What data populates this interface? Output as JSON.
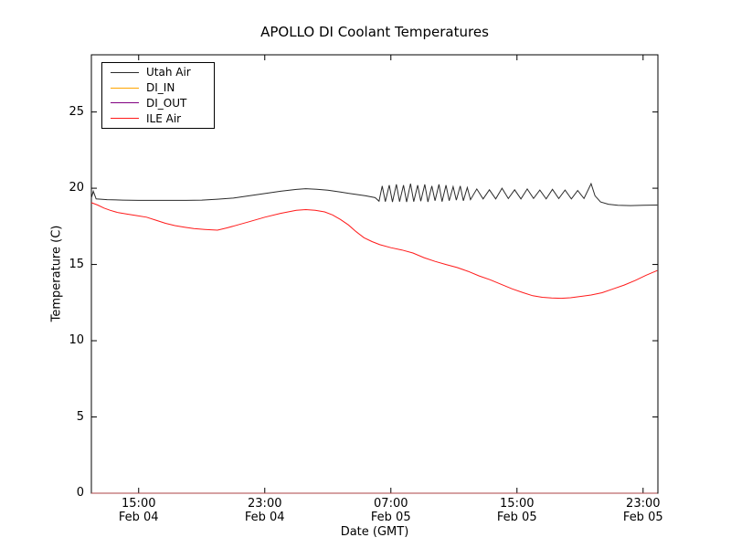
{
  "chart": {
    "title": "APOLLO DI Coolant Temperatures",
    "xlabel": "Date (GMT)",
    "ylabel": "Temperature (C)"
  },
  "chart_data": {
    "type": "line",
    "title": "APOLLO DI Coolant Temperatures",
    "xlabel": "Date (GMT)",
    "ylabel": "Temperature (C)",
    "grid": false,
    "legend_position": "upper left",
    "x_unit": "hours since Feb 04 12:00 GMT",
    "x_range_hours": [
      0,
      35.94
    ],
    "ylim": [
      0,
      28.75
    ],
    "x_ticks": [
      {
        "h": 3,
        "time": "15:00",
        "date": "Feb 04"
      },
      {
        "h": 11,
        "time": "23:00",
        "date": "Feb 04"
      },
      {
        "h": 19,
        "time": "07:00",
        "date": "Feb 05"
      },
      {
        "h": 27,
        "time": "15:00",
        "date": "Feb 05"
      },
      {
        "h": 35,
        "time": "23:00",
        "date": "Feb 05"
      }
    ],
    "y_ticks": [
      {
        "value": 0,
        "label": "0"
      },
      {
        "value": 5,
        "label": "5"
      },
      {
        "value": 10,
        "label": "10"
      },
      {
        "value": 15,
        "label": "15"
      },
      {
        "value": 20,
        "label": "20"
      },
      {
        "value": 25,
        "label": "25"
      }
    ],
    "series": [
      {
        "name": "Utah Air",
        "color": "#2b2b2b",
        "opacity": 1,
        "points": [
          [
            0,
            19.35
          ],
          [
            0.12,
            19.8
          ],
          [
            0.3,
            19.3
          ],
          [
            1,
            19.25
          ],
          [
            2,
            19.22
          ],
          [
            3,
            19.2
          ],
          [
            4,
            19.2
          ],
          [
            5,
            19.2
          ],
          [
            6,
            19.2
          ],
          [
            7,
            19.22
          ],
          [
            8,
            19.28
          ],
          [
            9,
            19.35
          ],
          [
            10,
            19.5
          ],
          [
            11,
            19.65
          ],
          [
            12,
            19.8
          ],
          [
            13,
            19.92
          ],
          [
            13.6,
            19.97
          ],
          [
            14.3,
            19.93
          ],
          [
            15,
            19.87
          ],
          [
            15.8,
            19.75
          ],
          [
            16.6,
            19.62
          ],
          [
            17.4,
            19.5
          ],
          [
            18,
            19.38
          ],
          [
            18.25,
            19.15
          ],
          [
            18.45,
            20.15
          ],
          [
            18.65,
            19.12
          ],
          [
            18.9,
            20.2
          ],
          [
            19.1,
            19.1
          ],
          [
            19.35,
            20.25
          ],
          [
            19.55,
            19.12
          ],
          [
            19.8,
            20.2
          ],
          [
            20.0,
            19.1
          ],
          [
            20.25,
            20.3
          ],
          [
            20.45,
            19.12
          ],
          [
            20.7,
            20.2
          ],
          [
            20.9,
            19.15
          ],
          [
            21.15,
            20.25
          ],
          [
            21.35,
            19.1
          ],
          [
            21.6,
            20.15
          ],
          [
            21.8,
            19.18
          ],
          [
            22.05,
            20.25
          ],
          [
            22.25,
            19.12
          ],
          [
            22.5,
            20.2
          ],
          [
            22.7,
            19.18
          ],
          [
            22.95,
            20.1
          ],
          [
            23.15,
            19.22
          ],
          [
            23.4,
            20.15
          ],
          [
            23.6,
            19.18
          ],
          [
            23.85,
            20.05
          ],
          [
            24.05,
            19.25
          ],
          [
            24.45,
            19.95
          ],
          [
            24.85,
            19.3
          ],
          [
            25.25,
            19.9
          ],
          [
            25.65,
            19.3
          ],
          [
            26.05,
            20.0
          ],
          [
            26.45,
            19.32
          ],
          [
            26.85,
            19.9
          ],
          [
            27.25,
            19.3
          ],
          [
            27.65,
            19.95
          ],
          [
            28.05,
            19.33
          ],
          [
            28.45,
            19.88
          ],
          [
            28.85,
            19.3
          ],
          [
            29.25,
            19.93
          ],
          [
            29.65,
            19.32
          ],
          [
            30.05,
            19.88
          ],
          [
            30.45,
            19.3
          ],
          [
            30.85,
            19.85
          ],
          [
            31.25,
            19.33
          ],
          [
            31.7,
            20.3
          ],
          [
            31.95,
            19.5
          ],
          [
            32.3,
            19.1
          ],
          [
            32.8,
            18.95
          ],
          [
            33.4,
            18.88
          ],
          [
            34.2,
            18.86
          ],
          [
            35,
            18.88
          ],
          [
            35.9,
            18.9
          ]
        ]
      },
      {
        "name": "DI_IN",
        "color": "#ffa500",
        "opacity": 0.9,
        "points": [
          [
            0,
            0
          ],
          [
            35.9,
            0
          ]
        ]
      },
      {
        "name": "DI_OUT",
        "color": "#800080",
        "opacity": 0.55,
        "points": [
          [
            0,
            0
          ],
          [
            35.9,
            0
          ]
        ]
      },
      {
        "name": "ILE Air",
        "color": "#ff1a1a",
        "opacity": 1,
        "points": [
          [
            0,
            19.05
          ],
          [
            0.4,
            18.9
          ],
          [
            0.8,
            18.7
          ],
          [
            1.2,
            18.55
          ],
          [
            1.7,
            18.4
          ],
          [
            2.3,
            18.3
          ],
          [
            2.9,
            18.2
          ],
          [
            3.5,
            18.1
          ],
          [
            4.1,
            17.9
          ],
          [
            4.7,
            17.7
          ],
          [
            5.3,
            17.55
          ],
          [
            5.9,
            17.45
          ],
          [
            6.5,
            17.35
          ],
          [
            7.2,
            17.3
          ],
          [
            8,
            17.25
          ],
          [
            8.6,
            17.4
          ],
          [
            9.3,
            17.6
          ],
          [
            10,
            17.8
          ],
          [
            11,
            18.1
          ],
          [
            12,
            18.35
          ],
          [
            13,
            18.55
          ],
          [
            13.6,
            18.6
          ],
          [
            14.2,
            18.55
          ],
          [
            14.8,
            18.45
          ],
          [
            15.3,
            18.25
          ],
          [
            15.8,
            17.95
          ],
          [
            16.3,
            17.6
          ],
          [
            16.8,
            17.15
          ],
          [
            17.3,
            16.75
          ],
          [
            17.8,
            16.5
          ],
          [
            18.3,
            16.3
          ],
          [
            19,
            16.1
          ],
          [
            19.7,
            15.95
          ],
          [
            20.4,
            15.75
          ],
          [
            21.1,
            15.45
          ],
          [
            21.8,
            15.2
          ],
          [
            22.5,
            15.0
          ],
          [
            23.2,
            14.8
          ],
          [
            23.9,
            14.55
          ],
          [
            24.6,
            14.25
          ],
          [
            25.3,
            14.0
          ],
          [
            26,
            13.7
          ],
          [
            26.7,
            13.4
          ],
          [
            27.4,
            13.15
          ],
          [
            28,
            12.95
          ],
          [
            28.6,
            12.85
          ],
          [
            29.2,
            12.8
          ],
          [
            29.8,
            12.78
          ],
          [
            30.4,
            12.82
          ],
          [
            31,
            12.9
          ],
          [
            31.7,
            13.0
          ],
          [
            32.4,
            13.15
          ],
          [
            33.1,
            13.4
          ],
          [
            33.8,
            13.65
          ],
          [
            34.5,
            13.95
          ],
          [
            35.2,
            14.3
          ],
          [
            35.9,
            14.6
          ]
        ]
      }
    ]
  }
}
